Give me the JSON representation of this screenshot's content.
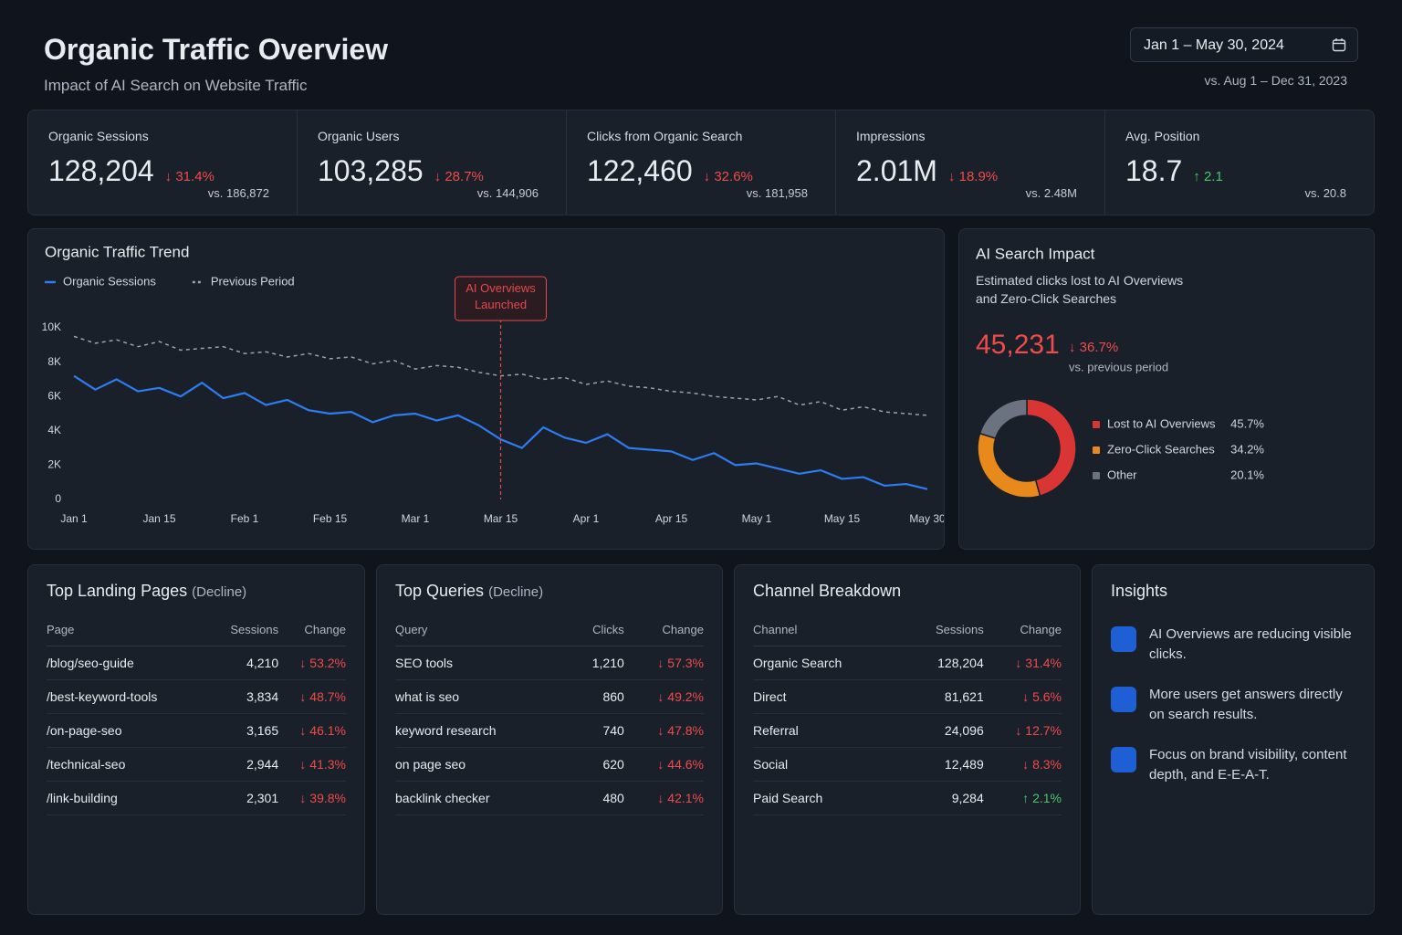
{
  "header": {
    "title": "Organic Traffic Overview",
    "subtitle": "Impact of AI Search on Website Traffic",
    "date_range": "Jan 1 – May 30, 2024",
    "compare": "vs. Aug 1 – Dec 31, 2023"
  },
  "kpis": [
    {
      "label": "Organic Sessions",
      "value": "128,204",
      "change": "↓ 31.4%",
      "direction": "down",
      "compare": "vs. 186,872"
    },
    {
      "label": "Organic Users",
      "value": "103,285",
      "change": "↓ 28.7%",
      "direction": "down",
      "compare": "vs. 144,906"
    },
    {
      "label": "Clicks from Organic Search",
      "value": "122,460",
      "change": "↓ 32.6%",
      "direction": "down",
      "compare": "vs. 181,958"
    },
    {
      "label": "Impressions",
      "value": "2.01M",
      "change": "↓ 18.9%",
      "direction": "down",
      "compare": "vs. 2.48M"
    },
    {
      "label": "Avg. Position",
      "value": "18.7",
      "change": "↑ 2.1",
      "direction": "up",
      "compare": "vs. 20.8"
    }
  ],
  "chart_data": [
    {
      "type": "line",
      "title": "Organic Traffic Trend",
      "categories": [
        "Jan 1",
        null,
        null,
        null,
        "Jan 15",
        null,
        null,
        null,
        "Feb 1",
        null,
        null,
        null,
        "Feb 15",
        null,
        null,
        null,
        "Mar 1",
        null,
        null,
        null,
        "Mar 15",
        null,
        null,
        null,
        "Apr 1",
        null,
        null,
        null,
        "Apr 15",
        null,
        null,
        null,
        "May 1",
        null,
        null,
        null,
        "May 15",
        null,
        null,
        null,
        "May 30"
      ],
      "series": [
        {
          "name": "Organic Sessions",
          "color": "#2f7bf0",
          "dash": false,
          "values": [
            7200,
            6400,
            7000,
            6300,
            6500,
            6000,
            6800,
            5900,
            6200,
            5500,
            5800,
            5200,
            5000,
            5100,
            4500,
            4900,
            5000,
            4600,
            4900,
            4300,
            3500,
            3000,
            4200,
            3600,
            3300,
            3800,
            3000,
            2900,
            2800,
            2300,
            2700,
            2000,
            2100,
            1800,
            1500,
            1700,
            1200,
            1300,
            800,
            900,
            600
          ]
        },
        {
          "name": "Previous Period",
          "color": "#9aa3ad",
          "dash": true,
          "values": [
            9500,
            9100,
            9300,
            8900,
            9200,
            8700,
            8800,
            8900,
            8500,
            8600,
            8300,
            8500,
            8200,
            8300,
            7900,
            8100,
            7600,
            7800,
            7700,
            7400,
            7200,
            7300,
            7000,
            7100,
            6700,
            6900,
            6600,
            6500,
            6300,
            6200,
            6000,
            5900,
            5800,
            6000,
            5500,
            5700,
            5200,
            5400,
            5100,
            5000,
            4900
          ]
        }
      ],
      "ylim": [
        0,
        10000
      ],
      "yticks": [
        0,
        {
          "value": 2000,
          "label": "2K"
        },
        {
          "value": 4000,
          "label": "4K"
        },
        {
          "value": 6000,
          "label": "6K"
        },
        {
          "value": 8000,
          "label": "8K"
        },
        {
          "value": 10000,
          "label": "10K"
        }
      ],
      "grid": false,
      "annotation": {
        "text": "AI Overviews Launched",
        "x": "Mar 15",
        "color": "#e5484d"
      }
    },
    {
      "type": "pie",
      "donut": true,
      "title": "AI Search Impact",
      "subtitle": "Estimated clicks lost to AI Overviews and Zero-Click Searches",
      "headline": "45,231",
      "headline_change": "↓ 36.7%",
      "headline_compare": "vs. previous period",
      "categories": [
        "Lost to AI Overviews",
        "Zero-Click Searches",
        "Other"
      ],
      "values": [
        45.7,
        34.2,
        20.1
      ],
      "value_labels": [
        "45.7%",
        "34.2%",
        "20.1%"
      ],
      "colors": [
        "#d93535",
        "#e8891c",
        "#6b7380"
      ]
    }
  ],
  "tables": [
    {
      "title": "Top Landing Pages",
      "note": "(Decline)",
      "columns": [
        "Page",
        "Sessions",
        "Change"
      ],
      "rows": [
        [
          "/blog/seo-guide",
          "4,210",
          "↓ 53.2%"
        ],
        [
          "/best-keyword-tools",
          "3,834",
          "↓ 48.7%"
        ],
        [
          "/on-page-seo",
          "3,165",
          "↓ 46.1%"
        ],
        [
          "/technical-seo",
          "2,944",
          "↓ 41.3%"
        ],
        [
          "/link-building",
          "2,301",
          "↓ 39.8%"
        ]
      ]
    },
    {
      "title": "Top Queries",
      "note": "(Decline)",
      "columns": [
        "Query",
        "Clicks",
        "Change"
      ],
      "rows": [
        [
          "SEO tools",
          "1,210",
          "↓ 57.3%"
        ],
        [
          "what is seo",
          "860",
          "↓ 49.2%"
        ],
        [
          "keyword research",
          "740",
          "↓ 47.8%"
        ],
        [
          "on page seo",
          "620",
          "↓ 44.6%"
        ],
        [
          "backlink checker",
          "480",
          "↓ 42.1%"
        ]
      ]
    },
    {
      "title": "Channel Breakdown",
      "columns": [
        "Channel",
        "Sessions",
        "Change"
      ],
      "rows": [
        [
          "Organic Search",
          "128,204",
          "↓ 31.4%"
        ],
        [
          "Direct",
          "81,621",
          "↓ 5.6%"
        ],
        [
          "Referral",
          "24,096",
          "↓ 12.7%"
        ],
        [
          "Social",
          "12,489",
          "↓ 8.3%"
        ],
        [
          "Paid Search",
          "9,284",
          "↑ 2.1%"
        ]
      ]
    }
  ],
  "insights": {
    "title": "Insights",
    "items": [
      "AI Overviews are reducing visible clicks.",
      "More users get answers directly on search results.",
      "Focus on brand visibility, content depth, and E-E-A-T."
    ]
  }
}
